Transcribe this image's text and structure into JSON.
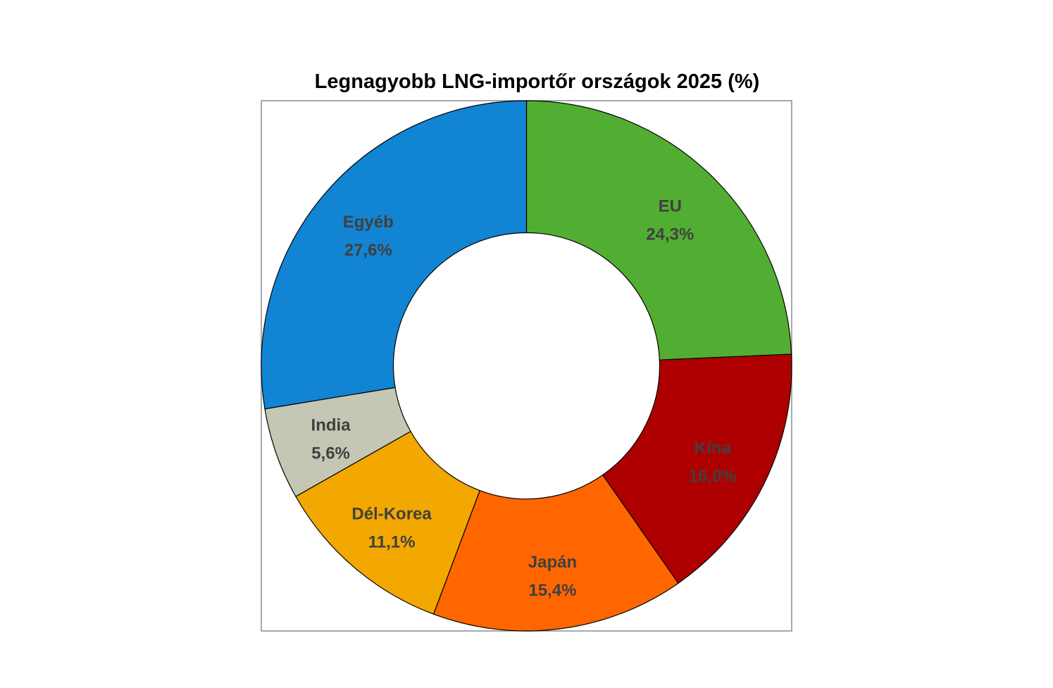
{
  "chart_data": {
    "type": "pie",
    "donut": true,
    "title": "Legnagyobb LNG-importőr országok 2025 (%)",
    "legend": "none",
    "slices": [
      {
        "label": "EU",
        "value": 24.3,
        "value_text": "24,3%",
        "color": "#52AE32"
      },
      {
        "label": "Kína",
        "value": 16.0,
        "value_text": "16,0%",
        "color": "#AE0000"
      },
      {
        "label": "Japán",
        "value": 15.4,
        "value_text": "15,4%",
        "color": "#FF6600"
      },
      {
        "label": "Dél-Korea",
        "value": 11.1,
        "value_text": "11,1%",
        "color": "#F2A800"
      },
      {
        "label": "India",
        "value": 5.6,
        "value_text": "5,6%",
        "color": "#C3C7B3"
      },
      {
        "label": "Egyéb",
        "value": 27.6,
        "value_text": "27,6%",
        "color": "#1185D3"
      }
    ]
  }
}
